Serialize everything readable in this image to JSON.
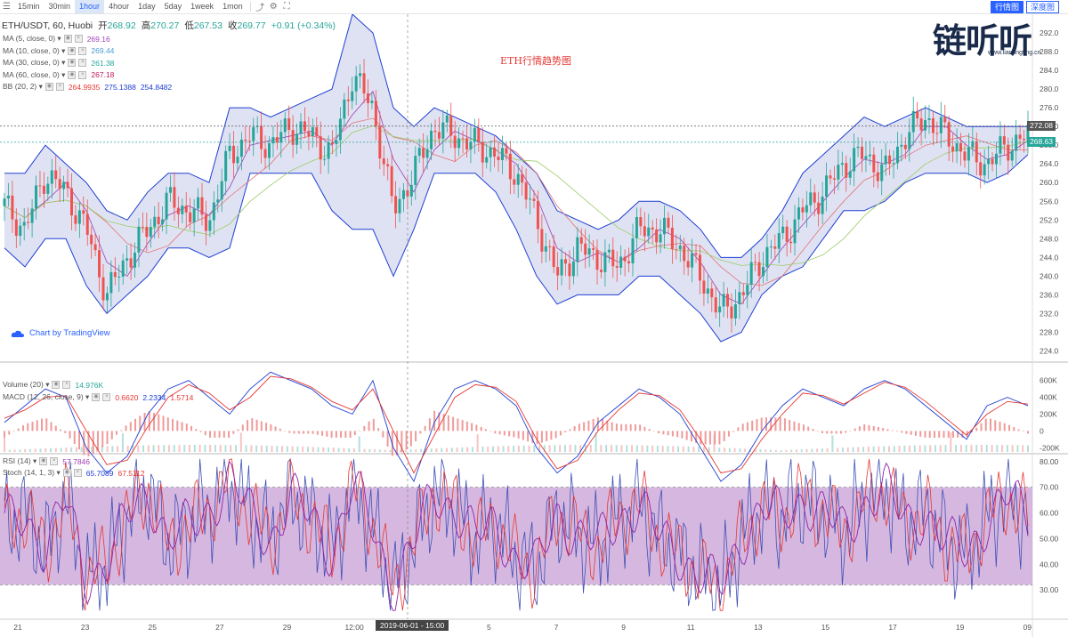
{
  "toolbar": {
    "timeframes": [
      "15min",
      "30min",
      "1hour",
      "4hour",
      "1day",
      "5day",
      "1week",
      "1mon"
    ],
    "active": "1hour",
    "right_buttons": [
      "行情图",
      "深度图"
    ],
    "active_right": "行情图"
  },
  "header": {
    "symbol": "ETH/USDT, 60, Huobi",
    "open_label": "开",
    "open": "268.92",
    "high_label": "高",
    "high": "270.27",
    "low_label": "低",
    "low": "267.53",
    "close_label": "收",
    "close": "269.77",
    "change": "+0.91 (+0.34%)"
  },
  "indicators": [
    {
      "name": "MA (5, close, 0)",
      "values": [
        "269.16"
      ],
      "colors": [
        "#a03fb5"
      ]
    },
    {
      "name": "MA (10, close, 0)",
      "values": [
        "269.44"
      ],
      "colors": [
        "#4a9bd6"
      ]
    },
    {
      "name": "MA (30, close, 0)",
      "values": [
        "261.38"
      ],
      "colors": [
        "#26a69a"
      ]
    },
    {
      "name": "MA (60, close, 0)",
      "values": [
        "267.18"
      ],
      "colors": [
        "#c2185b"
      ]
    },
    {
      "name": "BB (20, 2)",
      "values": [
        "264.9935",
        "275.1388",
        "254.8482"
      ],
      "colors": [
        "#e53935",
        "#1e3fd3",
        "#1e3fd3"
      ]
    }
  ],
  "volume_legend": {
    "name": "Volume (20)",
    "values": [
      "14.976K"
    ],
    "colors": [
      "#26a69a"
    ]
  },
  "macd_legend": {
    "name": "MACD (12, 26, close, 9)",
    "values": [
      "0.6620",
      "2.2334",
      "1.5714"
    ],
    "colors": [
      "#e53935",
      "#1e3fd3",
      "#e53935"
    ]
  },
  "rsi_legend": {
    "name": "RSI (14)",
    "values": [
      "57.7846"
    ],
    "colors": [
      "#a03fb5"
    ]
  },
  "stoch_legend": {
    "name": "Stoch (14, 1, 3)",
    "values": [
      "65.7089",
      "67.5112"
    ],
    "colors": [
      "#1e3fd3",
      "#e53935"
    ]
  },
  "title_overlay": "ETH行情趋势图",
  "brand": "Chart by TradingView",
  "logo": {
    "text": "链听听",
    "url": "www.liantingting.cn"
  },
  "crosshair_label": "2019-06-01 - 15:00",
  "price_tags": [
    {
      "value": "272.08",
      "color": "#555555"
    },
    {
      "value": "268.63",
      "color": "#26a69a"
    }
  ],
  "colors": {
    "up": "#26a69a",
    "down": "#ef5350",
    "bb": "#1e3fd3",
    "bb_fill": "#c5cae9",
    "rsi_fill": "#c89fd4"
  },
  "chart_data": [
    {
      "type": "candlestick",
      "title": "ETH行情趋势图",
      "ylim": [
        222,
        296
      ],
      "y_ticks": [
        224,
        228,
        232,
        236,
        240,
        244,
        248,
        252,
        256,
        260,
        264,
        268,
        272,
        276,
        280,
        284,
        288,
        292
      ],
      "x_ticks": [
        "21",
        "23",
        "25",
        "27",
        "29",
        "12:00",
        "3",
        "5",
        "7",
        "9",
        "11",
        "13",
        "15",
        "17",
        "19",
        "09"
      ],
      "series": [
        {
          "name": "Price (approx close)",
          "values": [
            255,
            250,
            262,
            258,
            250,
            236,
            244,
            250,
            256,
            254,
            252,
            266,
            270,
            268,
            272,
            270,
            266,
            283,
            276,
            254,
            262,
            272,
            270,
            268,
            266,
            262,
            252,
            240,
            246,
            244,
            242,
            250,
            250,
            246,
            240,
            232,
            236,
            244,
            248,
            254,
            258,
            264,
            266,
            262,
            270,
            274,
            270,
            266,
            264,
            268,
            270
          ]
        },
        {
          "name": "BB upper",
          "values": [
            262,
            262,
            268,
            264,
            260,
            254,
            252,
            258,
            262,
            262,
            260,
            276,
            276,
            274,
            276,
            278,
            280,
            296,
            292,
            276,
            272,
            276,
            274,
            272,
            270,
            266,
            262,
            254,
            252,
            250,
            252,
            256,
            256,
            254,
            250,
            244,
            244,
            248,
            254,
            262,
            266,
            270,
            274,
            272,
            274,
            276,
            274,
            272,
            272,
            272,
            272
          ]
        },
        {
          "name": "BB lower",
          "values": [
            246,
            242,
            248,
            248,
            238,
            232,
            236,
            240,
            246,
            246,
            244,
            246,
            262,
            262,
            262,
            262,
            254,
            250,
            250,
            240,
            250,
            262,
            262,
            262,
            258,
            250,
            240,
            234,
            236,
            236,
            236,
            240,
            240,
            236,
            232,
            226,
            228,
            236,
            240,
            242,
            248,
            254,
            254,
            256,
            260,
            262,
            262,
            262,
            260,
            262,
            266
          ]
        }
      ]
    },
    {
      "type": "line",
      "title": "MACD (12, 26, close, 9)",
      "ylim": [
        -250000,
        650000
      ],
      "y_ticks": [
        -200000,
        0,
        200000,
        400000,
        600000
      ],
      "series": [
        {
          "name": "MACD",
          "values": [
            100,
            300,
            500,
            400,
            -200,
            -500,
            -300,
            200,
            500,
            600,
            400,
            200,
            500,
            700,
            600,
            500,
            300,
            200,
            600,
            -200,
            -600,
            100,
            500,
            600,
            500,
            300,
            -200,
            -500,
            -300,
            100,
            300,
            500,
            400,
            200,
            -200,
            -600,
            -400,
            0,
            300,
            500,
            400,
            300,
            500,
            600,
            500,
            300,
            100,
            -100,
            300,
            400,
            300
          ]
        },
        {
          "name": "Signal",
          "values": [
            150,
            250,
            400,
            420,
            0,
            -400,
            -350,
            50,
            400,
            550,
            450,
            250,
            400,
            650,
            620,
            520,
            350,
            250,
            500,
            0,
            -500,
            -50,
            400,
            550,
            520,
            350,
            -100,
            -450,
            -350,
            0,
            250,
            450,
            420,
            250,
            -100,
            -500,
            -450,
            -100,
            200,
            450,
            420,
            320,
            450,
            580,
            520,
            350,
            150,
            -50,
            200,
            350,
            320
          ]
        }
      ]
    },
    {
      "type": "line",
      "title": "RSI (14)",
      "ylim": [
        20,
        82
      ],
      "y_ticks": [
        30,
        40,
        50,
        60,
        70,
        80
      ],
      "bands": [
        32,
        70
      ],
      "series": [
        {
          "name": "RSI",
          "values": [
            55,
            60,
            45,
            65,
            35,
            40,
            58,
            70,
            48,
            55,
            62,
            72,
            60,
            50,
            66,
            58,
            45,
            70,
            55,
            30,
            48,
            68,
            62,
            50,
            56,
            42,
            38,
            60,
            52,
            47,
            58,
            64,
            50,
            44,
            36,
            30,
            50,
            62,
            58,
            66,
            60,
            52,
            64,
            70,
            56,
            60,
            48,
            44,
            58,
            66,
            58
          ]
        }
      ]
    }
  ]
}
